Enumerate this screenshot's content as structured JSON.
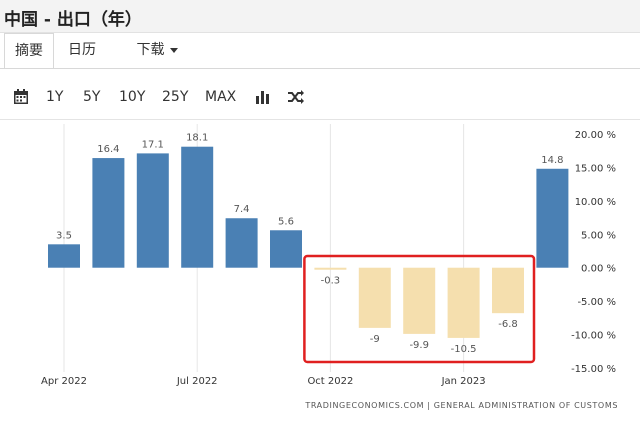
{
  "window": {
    "title": "中国 - 出口（年）"
  },
  "tabs": [
    {
      "label": "摘要",
      "active": true
    },
    {
      "label": "日历",
      "active": false
    },
    {
      "label": "下载",
      "active": false,
      "dropdown": true
    }
  ],
  "toolbar": {
    "calendar_icon": "calendar-icon",
    "ranges": [
      "1Y",
      "5Y",
      "10Y",
      "25Y",
      "MAX"
    ],
    "chart_type_icon": "bar-chart-icon",
    "compare_icon": "shuffle-icon"
  },
  "chart_data": {
    "type": "bar",
    "title": "",
    "xlabel": "",
    "ylabel": "",
    "ylim": [
      -15,
      20
    ],
    "yticks": [
      20,
      15,
      10,
      5,
      0,
      -5,
      -10,
      -15
    ],
    "ytick_labels": [
      "20.00 %",
      "15.00 %",
      "10.00 %",
      "5.00 %",
      "0.00 %",
      "-5.00 %",
      "-10.00 %",
      "-15.00 %"
    ],
    "xtick_labels": [
      "Apr 2022",
      "Jul 2022",
      "Oct 2022",
      "Jan 2023"
    ],
    "categories": [
      "Apr 2022",
      "May 2022",
      "Jun 2022",
      "Jul 2022",
      "Aug 2022",
      "Sep 2022",
      "Oct 2022",
      "Nov 2022",
      "Dec 2022",
      "Jan 2023",
      "Feb 2023",
      "Mar 2023"
    ],
    "values": [
      3.5,
      16.4,
      17.1,
      18.1,
      7.4,
      5.6,
      -0.3,
      -9,
      -9.9,
      -10.5,
      -6.8,
      14.8
    ],
    "value_labels": [
      "3.5",
      "16.4",
      "17.1",
      "18.1",
      "7.4",
      "5.6",
      "-0.3",
      "-9",
      "-9.9",
      "-10.5",
      "-6.8",
      "14.8"
    ],
    "colors": {
      "positive": "#4a80b4",
      "negative": "#f5dfae",
      "highlight_box": "#e02020"
    },
    "highlight_range": [
      "Oct 2022",
      "Feb 2023"
    ],
    "grid": "vertical",
    "legend": "none"
  },
  "source_text": "TRADINGECONOMICS.COM | GENERAL ADMINISTRATION OF CUSTOMS"
}
